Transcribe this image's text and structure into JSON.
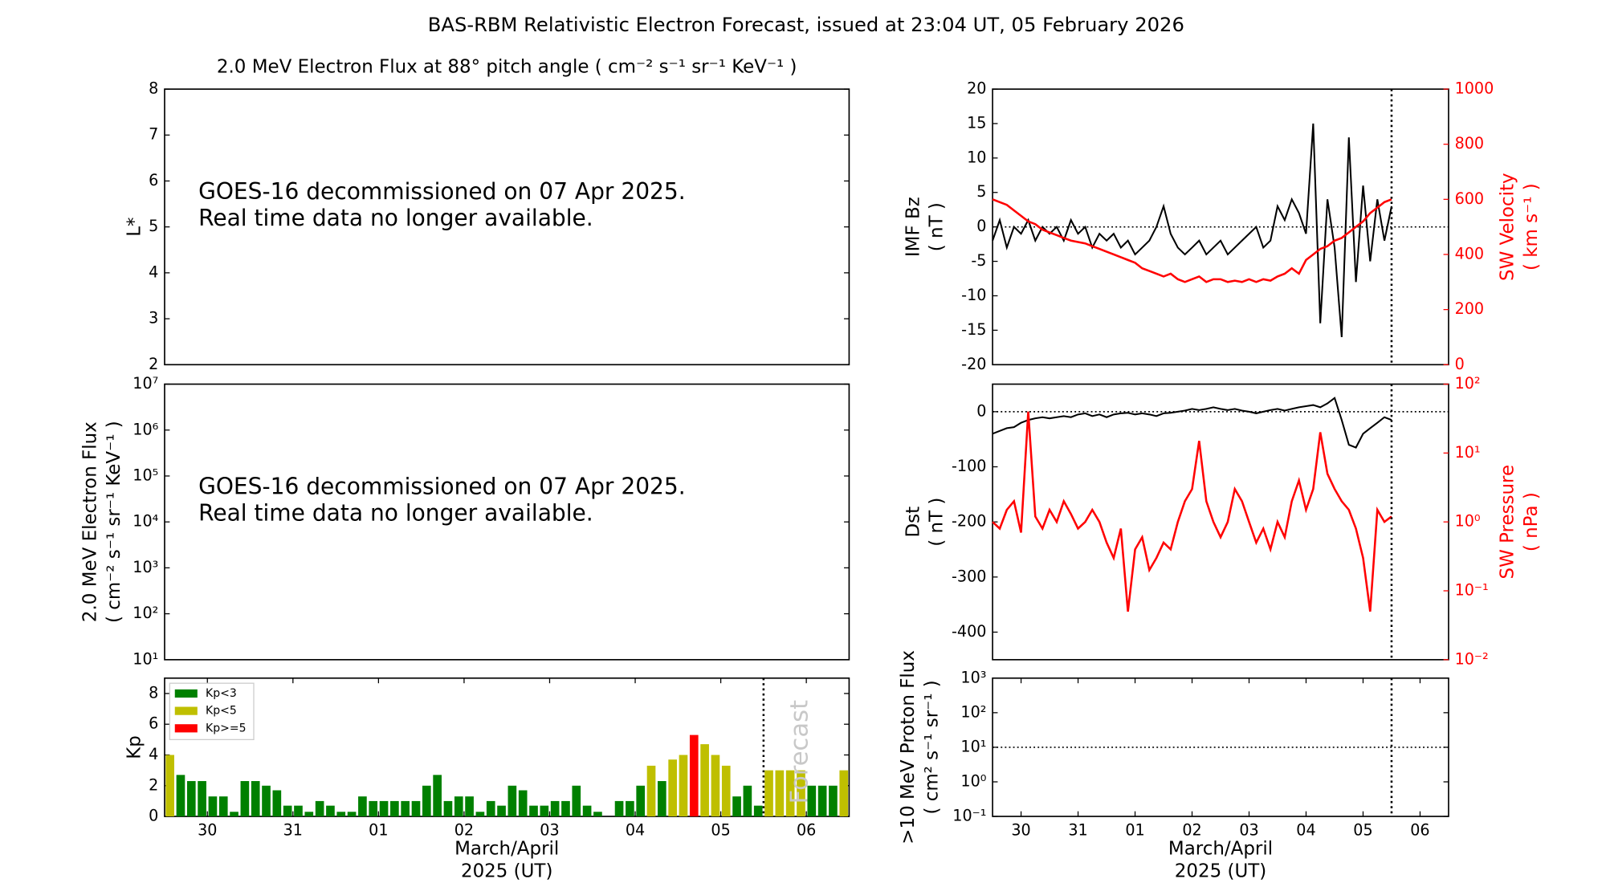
{
  "title": "BAS-RBM Relativistic Electron Forecast, issued at 23:04 UT, 05 February 2026",
  "chart_data": [
    {
      "type": "line",
      "title": "2.0 MeV Electron Flux at 88° pitch angle ( cm⁻² s⁻¹ sr⁻¹ KeV⁻¹ )",
      "ylabel": [
        "L*"
      ],
      "xlim": [
        0,
        8
      ],
      "ylim": [
        2,
        8
      ],
      "yticks": [
        2,
        3,
        4,
        5,
        6,
        7,
        8
      ],
      "annotations": [
        "GOES-16 decommissioned on 07 Apr 2025.",
        "Real time data no longer available."
      ],
      "series": []
    },
    {
      "type": "line",
      "ylabel": [
        "2.0 MeV Electron Flux",
        "( cm⁻² s⁻¹ sr⁻¹ KeV⁻¹ )"
      ],
      "xlim": [
        0,
        8
      ],
      "ylim": [
        10,
        10000000
      ],
      "ylog": true,
      "yticks": [
        {
          "value": 10,
          "label": "10¹"
        },
        {
          "value": 100,
          "label": "10²"
        },
        {
          "value": 1000,
          "label": "10³"
        },
        {
          "value": 10000,
          "label": "10⁴"
        },
        {
          "value": 100000,
          "label": "10⁵"
        },
        {
          "value": 1000000,
          "label": "10⁶"
        },
        {
          "value": 10000000,
          "label": "10⁷"
        }
      ],
      "annotations": [
        "GOES-16 decommissioned on 07 Apr 2025.",
        "Real time data no longer available."
      ],
      "series": []
    },
    {
      "type": "bar",
      "ylabel": [
        "Kp"
      ],
      "xlabel": [
        "March/April",
        "2025 (UT)"
      ],
      "xlim": [
        0,
        8
      ],
      "ylim": [
        0,
        9
      ],
      "yticks": [
        0,
        2,
        4,
        6,
        8
      ],
      "xticks": [
        {
          "value": 0.5,
          "label": "30"
        },
        {
          "value": 1.5,
          "label": "31"
        },
        {
          "value": 2.5,
          "label": "01"
        },
        {
          "value": 3.5,
          "label": "02"
        },
        {
          "value": 4.5,
          "label": "03"
        },
        {
          "value": 5.5,
          "label": "04"
        },
        {
          "value": 6.5,
          "label": "05"
        },
        {
          "value": 7.5,
          "label": "06"
        }
      ],
      "forecast_x": 7,
      "annotations": [
        "Forecast"
      ],
      "legend": [
        {
          "name": "Kp<3",
          "color": "#008000"
        },
        {
          "name": "Kp<5",
          "color": "#bfbf00"
        },
        {
          "name": "Kp>=5",
          "color": "#ff0000"
        }
      ],
      "bar_width": 0.125,
      "x": [
        0,
        0.125,
        0.25,
        0.375,
        0.5,
        0.625,
        0.75,
        0.875,
        1,
        1.125,
        1.25,
        1.375,
        1.5,
        1.625,
        1.75,
        1.875,
        2,
        2.125,
        2.25,
        2.375,
        2.5,
        2.625,
        2.75,
        2.875,
        3,
        3.125,
        3.25,
        3.375,
        3.5,
        3.625,
        3.75,
        3.875,
        4,
        4.125,
        4.25,
        4.375,
        4.5,
        4.625,
        4.75,
        4.875,
        5,
        5.125,
        5.25,
        5.375,
        5.5,
        5.625,
        5.75,
        5.875,
        6,
        6.125,
        6.25,
        6.375,
        6.5,
        6.625,
        6.75,
        6.875,
        7,
        7.125,
        7.25,
        7.375,
        7.5,
        7.625,
        7.75,
        7.875
      ],
      "values": [
        4.0,
        2.7,
        2.3,
        2.3,
        1.3,
        1.3,
        0.3,
        2.3,
        2.3,
        2.0,
        1.7,
        0.7,
        0.7,
        0.3,
        1.0,
        0.7,
        0.3,
        0.3,
        1.3,
        1.0,
        1.0,
        1.0,
        1.0,
        1.0,
        2.0,
        2.7,
        1.0,
        1.3,
        1.3,
        0.3,
        1.0,
        0.7,
        2.0,
        1.7,
        0.7,
        0.7,
        1.0,
        1.0,
        2.0,
        0.7,
        0.3,
        0,
        1.0,
        1.0,
        2.0,
        3.3,
        2.3,
        3.7,
        4.0,
        5.3,
        4.7,
        4.0,
        3.3,
        1.3,
        2.0,
        0.7,
        3.0,
        3.0,
        3.0,
        3.0,
        2.0,
        2.0,
        2.0,
        3.0
      ],
      "colors": [
        "#bfbf00",
        "#008000",
        "#008000",
        "#008000",
        "#008000",
        "#008000",
        "#008000",
        "#008000",
        "#008000",
        "#008000",
        "#008000",
        "#008000",
        "#008000",
        "#008000",
        "#008000",
        "#008000",
        "#008000",
        "#008000",
        "#008000",
        "#008000",
        "#008000",
        "#008000",
        "#008000",
        "#008000",
        "#008000",
        "#008000",
        "#008000",
        "#008000",
        "#008000",
        "#008000",
        "#008000",
        "#008000",
        "#008000",
        "#008000",
        "#008000",
        "#008000",
        "#008000",
        "#008000",
        "#008000",
        "#008000",
        "#008000",
        "#008000",
        "#008000",
        "#008000",
        "#008000",
        "#bfbf00",
        "#008000",
        "#bfbf00",
        "#bfbf00",
        "#ff0000",
        "#bfbf00",
        "#bfbf00",
        "#bfbf00",
        "#008000",
        "#008000",
        "#008000",
        "#bfbf00",
        "#bfbf00",
        "#bfbf00",
        "#bfbf00",
        "#008000",
        "#008000",
        "#008000",
        "#bfbf00"
      ]
    },
    {
      "type": "line",
      "ylabel": [
        "IMF Bz",
        "( nT )"
      ],
      "y2label": [
        "SW Velocity",
        "( km s⁻¹ )"
      ],
      "xlim": [
        0,
        8
      ],
      "ylim": [
        -20,
        20
      ],
      "yticks": [
        -20,
        -15,
        -10,
        -5,
        0,
        5,
        10,
        15,
        20
      ],
      "y2lim": [
        0,
        1000
      ],
      "y2ticks": [
        0,
        200,
        400,
        600,
        800,
        1000
      ],
      "hlines": [
        0
      ],
      "forecast_x": 7,
      "x": [
        0,
        0.125,
        0.25,
        0.375,
        0.5,
        0.625,
        0.75,
        0.875,
        1,
        1.125,
        1.25,
        1.375,
        1.5,
        1.625,
        1.75,
        1.875,
        2,
        2.125,
        2.25,
        2.375,
        2.5,
        2.625,
        2.75,
        2.875,
        3,
        3.125,
        3.25,
        3.375,
        3.5,
        3.625,
        3.75,
        3.875,
        4,
        4.125,
        4.25,
        4.375,
        4.5,
        4.625,
        4.75,
        4.875,
        5,
        5.125,
        5.25,
        5.375,
        5.5,
        5.625,
        5.75,
        5.875,
        6,
        6.125,
        6.25,
        6.375,
        6.5,
        6.625,
        6.75,
        6.875,
        7
      ],
      "series": [
        {
          "name": "IMF Bz",
          "color": "#000000",
          "values": [
            -2,
            1,
            -3,
            0,
            -1,
            1,
            -2,
            0,
            -1,
            0,
            -2,
            1,
            -1,
            0,
            -3,
            -1,
            -2,
            -1,
            -3,
            -2,
            -4,
            -3,
            -2,
            0,
            3,
            -1,
            -3,
            -4,
            -3,
            -2,
            -4,
            -3,
            -2,
            -4,
            -3,
            -2,
            -1,
            0,
            -3,
            -2,
            3,
            1,
            4,
            2,
            -1,
            15,
            -14,
            4,
            -3,
            -16,
            13,
            -8,
            6,
            -5,
            4,
            -2,
            3
          ]
        },
        {
          "name": "SW Velocity",
          "color": "#ff0000",
          "axis": "y2",
          "values": [
            600,
            590,
            580,
            560,
            540,
            520,
            510,
            490,
            480,
            470,
            460,
            450,
            445,
            440,
            430,
            420,
            410,
            400,
            390,
            380,
            370,
            350,
            340,
            330,
            320,
            330,
            310,
            300,
            310,
            320,
            300,
            310,
            310,
            300,
            305,
            300,
            310,
            300,
            310,
            305,
            320,
            330,
            350,
            330,
            380,
            400,
            420,
            430,
            450,
            460,
            480,
            500,
            520,
            550,
            570,
            590,
            600
          ]
        }
      ]
    },
    {
      "type": "line",
      "ylabel": [
        "Dst",
        "( nT )"
      ],
      "y2label": [
        "SW Pressure",
        "( nPa )"
      ],
      "xlim": [
        0,
        8
      ],
      "ylim": [
        -450,
        50
      ],
      "yticks": [
        -400,
        -300,
        -200,
        -100,
        0
      ],
      "y2lim": [
        0.01,
        100
      ],
      "y2log": true,
      "y2ticks": [
        {
          "value": 0.01,
          "label": "10⁻²"
        },
        {
          "value": 0.1,
          "label": "10⁻¹"
        },
        {
          "value": 1,
          "label": "10⁰"
        },
        {
          "value": 10,
          "label": "10¹"
        },
        {
          "value": 100,
          "label": "10²"
        }
      ],
      "hlines": [
        0
      ],
      "forecast_x": 7,
      "x": [
        0,
        0.125,
        0.25,
        0.375,
        0.5,
        0.625,
        0.75,
        0.875,
        1,
        1.125,
        1.25,
        1.375,
        1.5,
        1.625,
        1.75,
        1.875,
        2,
        2.125,
        2.25,
        2.375,
        2.5,
        2.625,
        2.75,
        2.875,
        3,
        3.125,
        3.25,
        3.375,
        3.5,
        3.625,
        3.75,
        3.875,
        4,
        4.125,
        4.25,
        4.375,
        4.5,
        4.625,
        4.75,
        4.875,
        5,
        5.125,
        5.25,
        5.375,
        5.5,
        5.625,
        5.75,
        5.875,
        6,
        6.125,
        6.25,
        6.375,
        6.5,
        6.625,
        6.75,
        6.875,
        7
      ],
      "series": [
        {
          "name": "Dst",
          "color": "#000000",
          "values": [
            -40,
            -35,
            -30,
            -28,
            -20,
            -15,
            -12,
            -10,
            -12,
            -10,
            -8,
            -10,
            -5,
            -3,
            -8,
            -5,
            -10,
            -5,
            -3,
            -2,
            -5,
            -3,
            -5,
            -8,
            -3,
            -2,
            0,
            2,
            5,
            3,
            5,
            8,
            5,
            3,
            5,
            2,
            0,
            -3,
            0,
            3,
            5,
            2,
            5,
            8,
            10,
            12,
            8,
            15,
            25,
            -15,
            -60,
            -65,
            -40,
            -30,
            -20,
            -10,
            -15
          ]
        },
        {
          "name": "SW Pressure",
          "color": "#ff0000",
          "axis": "y2",
          "values": [
            1,
            0.8,
            1.5,
            2,
            0.7,
            40,
            1.2,
            0.8,
            1.5,
            1,
            2,
            1.3,
            0.8,
            1,
            1.5,
            1,
            0.5,
            0.3,
            0.8,
            0.05,
            0.4,
            0.6,
            0.2,
            0.3,
            0.5,
            0.4,
            1,
            2,
            3,
            15,
            2,
            1,
            0.6,
            1,
            3,
            2,
            1,
            0.5,
            0.8,
            0.4,
            1,
            0.6,
            2,
            4,
            1.5,
            3,
            20,
            5,
            3,
            2,
            1.5,
            0.8,
            0.3,
            0.05,
            1.5,
            1,
            1.2
          ]
        }
      ]
    },
    {
      "type": "line",
      "ylabel": [
        ">10 MeV Proton Flux",
        "( cm² s⁻¹ sr⁻¹ )"
      ],
      "xlabel": [
        "March/April",
        "2025 (UT)"
      ],
      "xlim": [
        0,
        8
      ],
      "ylim": [
        0.1,
        1000
      ],
      "ylog": true,
      "yticks": [
        {
          "value": 0.1,
          "label": "10⁻¹"
        },
        {
          "value": 1,
          "label": "10⁰"
        },
        {
          "value": 10,
          "label": "10¹"
        },
        {
          "value": 100,
          "label": "10²"
        },
        {
          "value": 1000,
          "label": "10³"
        }
      ],
      "xticks": [
        {
          "value": 0.5,
          "label": "30"
        },
        {
          "value": 1.5,
          "label": "31"
        },
        {
          "value": 2.5,
          "label": "01"
        },
        {
          "value": 3.5,
          "label": "02"
        },
        {
          "value": 4.5,
          "label": "03"
        },
        {
          "value": 5.5,
          "label": "04"
        },
        {
          "value": 6.5,
          "label": "05"
        },
        {
          "value": 7.5,
          "label": "06"
        }
      ],
      "hlines": [
        10
      ],
      "forecast_x": 7,
      "series": []
    }
  ]
}
